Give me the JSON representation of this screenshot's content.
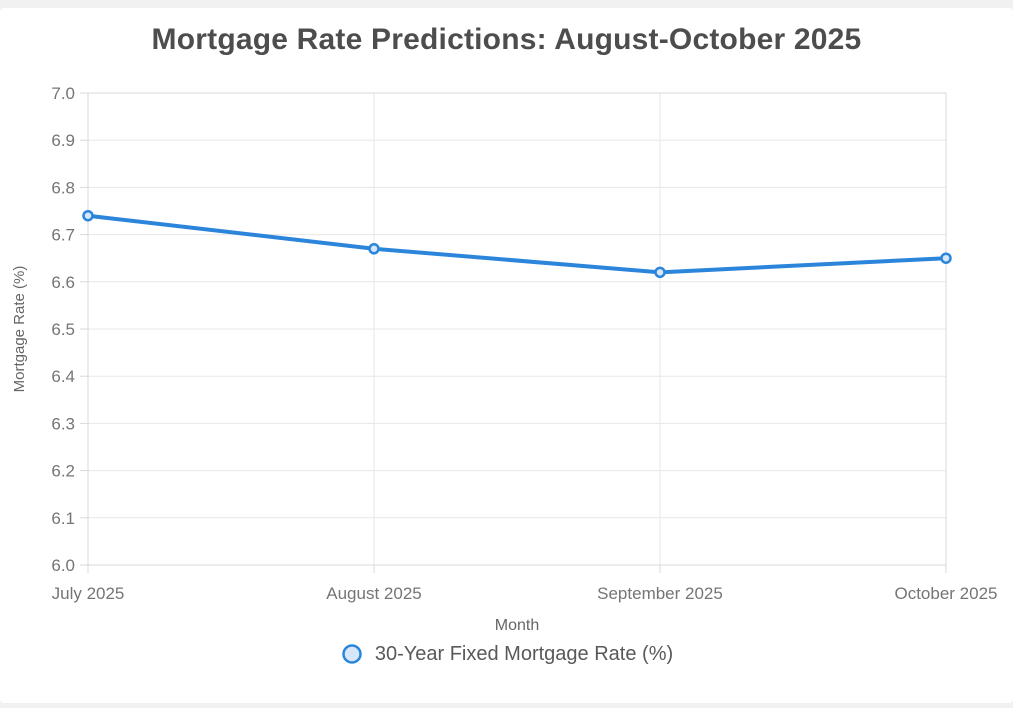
{
  "page": {
    "title": "Mortgage Rate Predictions: August-October 2025"
  },
  "chart_data": {
    "type": "line",
    "title": "Mortgage Rate Predictions: August-October 2025",
    "categories": [
      "July 2025",
      "August 2025",
      "September 2025",
      "October 2025"
    ],
    "series": [
      {
        "name": "30-Year Fixed Mortgage Rate (%)",
        "values": [
          6.74,
          6.67,
          6.62,
          6.65
        ]
      }
    ],
    "xlabel": "Month",
    "ylabel": "Mortgage Rate (%)",
    "ylim": [
      6.0,
      7.0
    ],
    "ytick_step": 0.1,
    "ytick_labels": [
      "6.0",
      "6.1",
      "6.2",
      "6.3",
      "6.4",
      "6.5",
      "6.6",
      "6.7",
      "6.8",
      "6.9",
      "7.0"
    ],
    "grid": true,
    "legend_position": "bottom",
    "colors": {
      "line": "#2b85db",
      "point_fill": "#d5e7f8",
      "grid": "#e7e7e7",
      "axis": "#d9d9d9",
      "tick_label": "#757575",
      "axis_title": "#666666",
      "title": "#4d4d4d",
      "legend_text": "#595959"
    }
  }
}
